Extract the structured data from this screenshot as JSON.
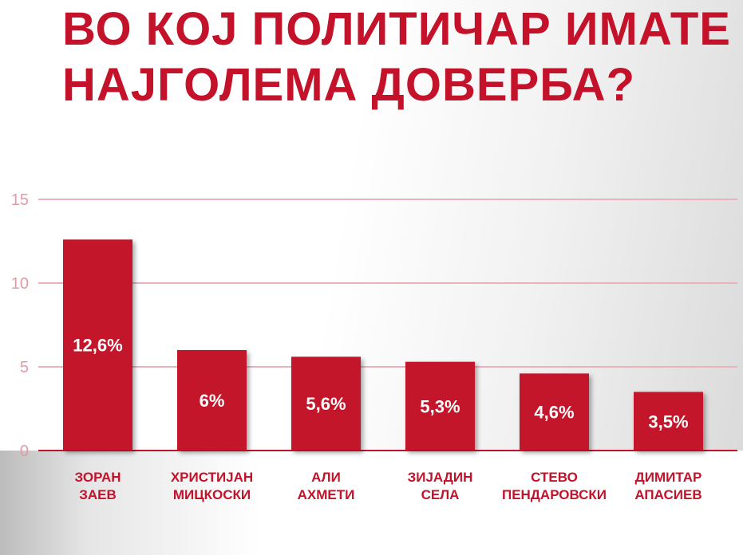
{
  "title_lines": [
    "ВО КОЈ ПОЛИТИЧАР ИМАТЕ",
    "НАЈГОЛЕМА ДОВЕРБА?"
  ],
  "colors": {
    "accent": "#c3122a",
    "grid": "#e8b3bb",
    "tick": "#e59aa6",
    "bar_text": "#ffffff"
  },
  "chart_data": {
    "type": "bar",
    "title": "ВО КОЈ ПОЛИТИЧАР ИМАТЕ НАЈГОЛЕМА ДОВЕРБА?",
    "categories": [
      [
        "ЗОРАН",
        "ЗАЕВ"
      ],
      [
        "ХРИСТИЈАН",
        "МИЦКОСКИ"
      ],
      [
        "АЛИ",
        "АХМЕТИ"
      ],
      [
        "ЗИЈАДИН",
        "СЕЛА"
      ],
      [
        "СТЕВО",
        "ПЕНДАРОВСКИ"
      ],
      [
        "ДИМИТАР",
        "АПАСИЕВ"
      ]
    ],
    "values": [
      12.6,
      6,
      5.6,
      5.3,
      4.6,
      3.5
    ],
    "value_labels": [
      "12,6%",
      "6%",
      "5,6%",
      "5,3%",
      "4,6%",
      "3,5%"
    ],
    "xlabel": "",
    "ylabel": "",
    "ylim": [
      0,
      15
    ],
    "yticks": [
      0,
      5,
      10,
      15
    ],
    "grid": true
  }
}
